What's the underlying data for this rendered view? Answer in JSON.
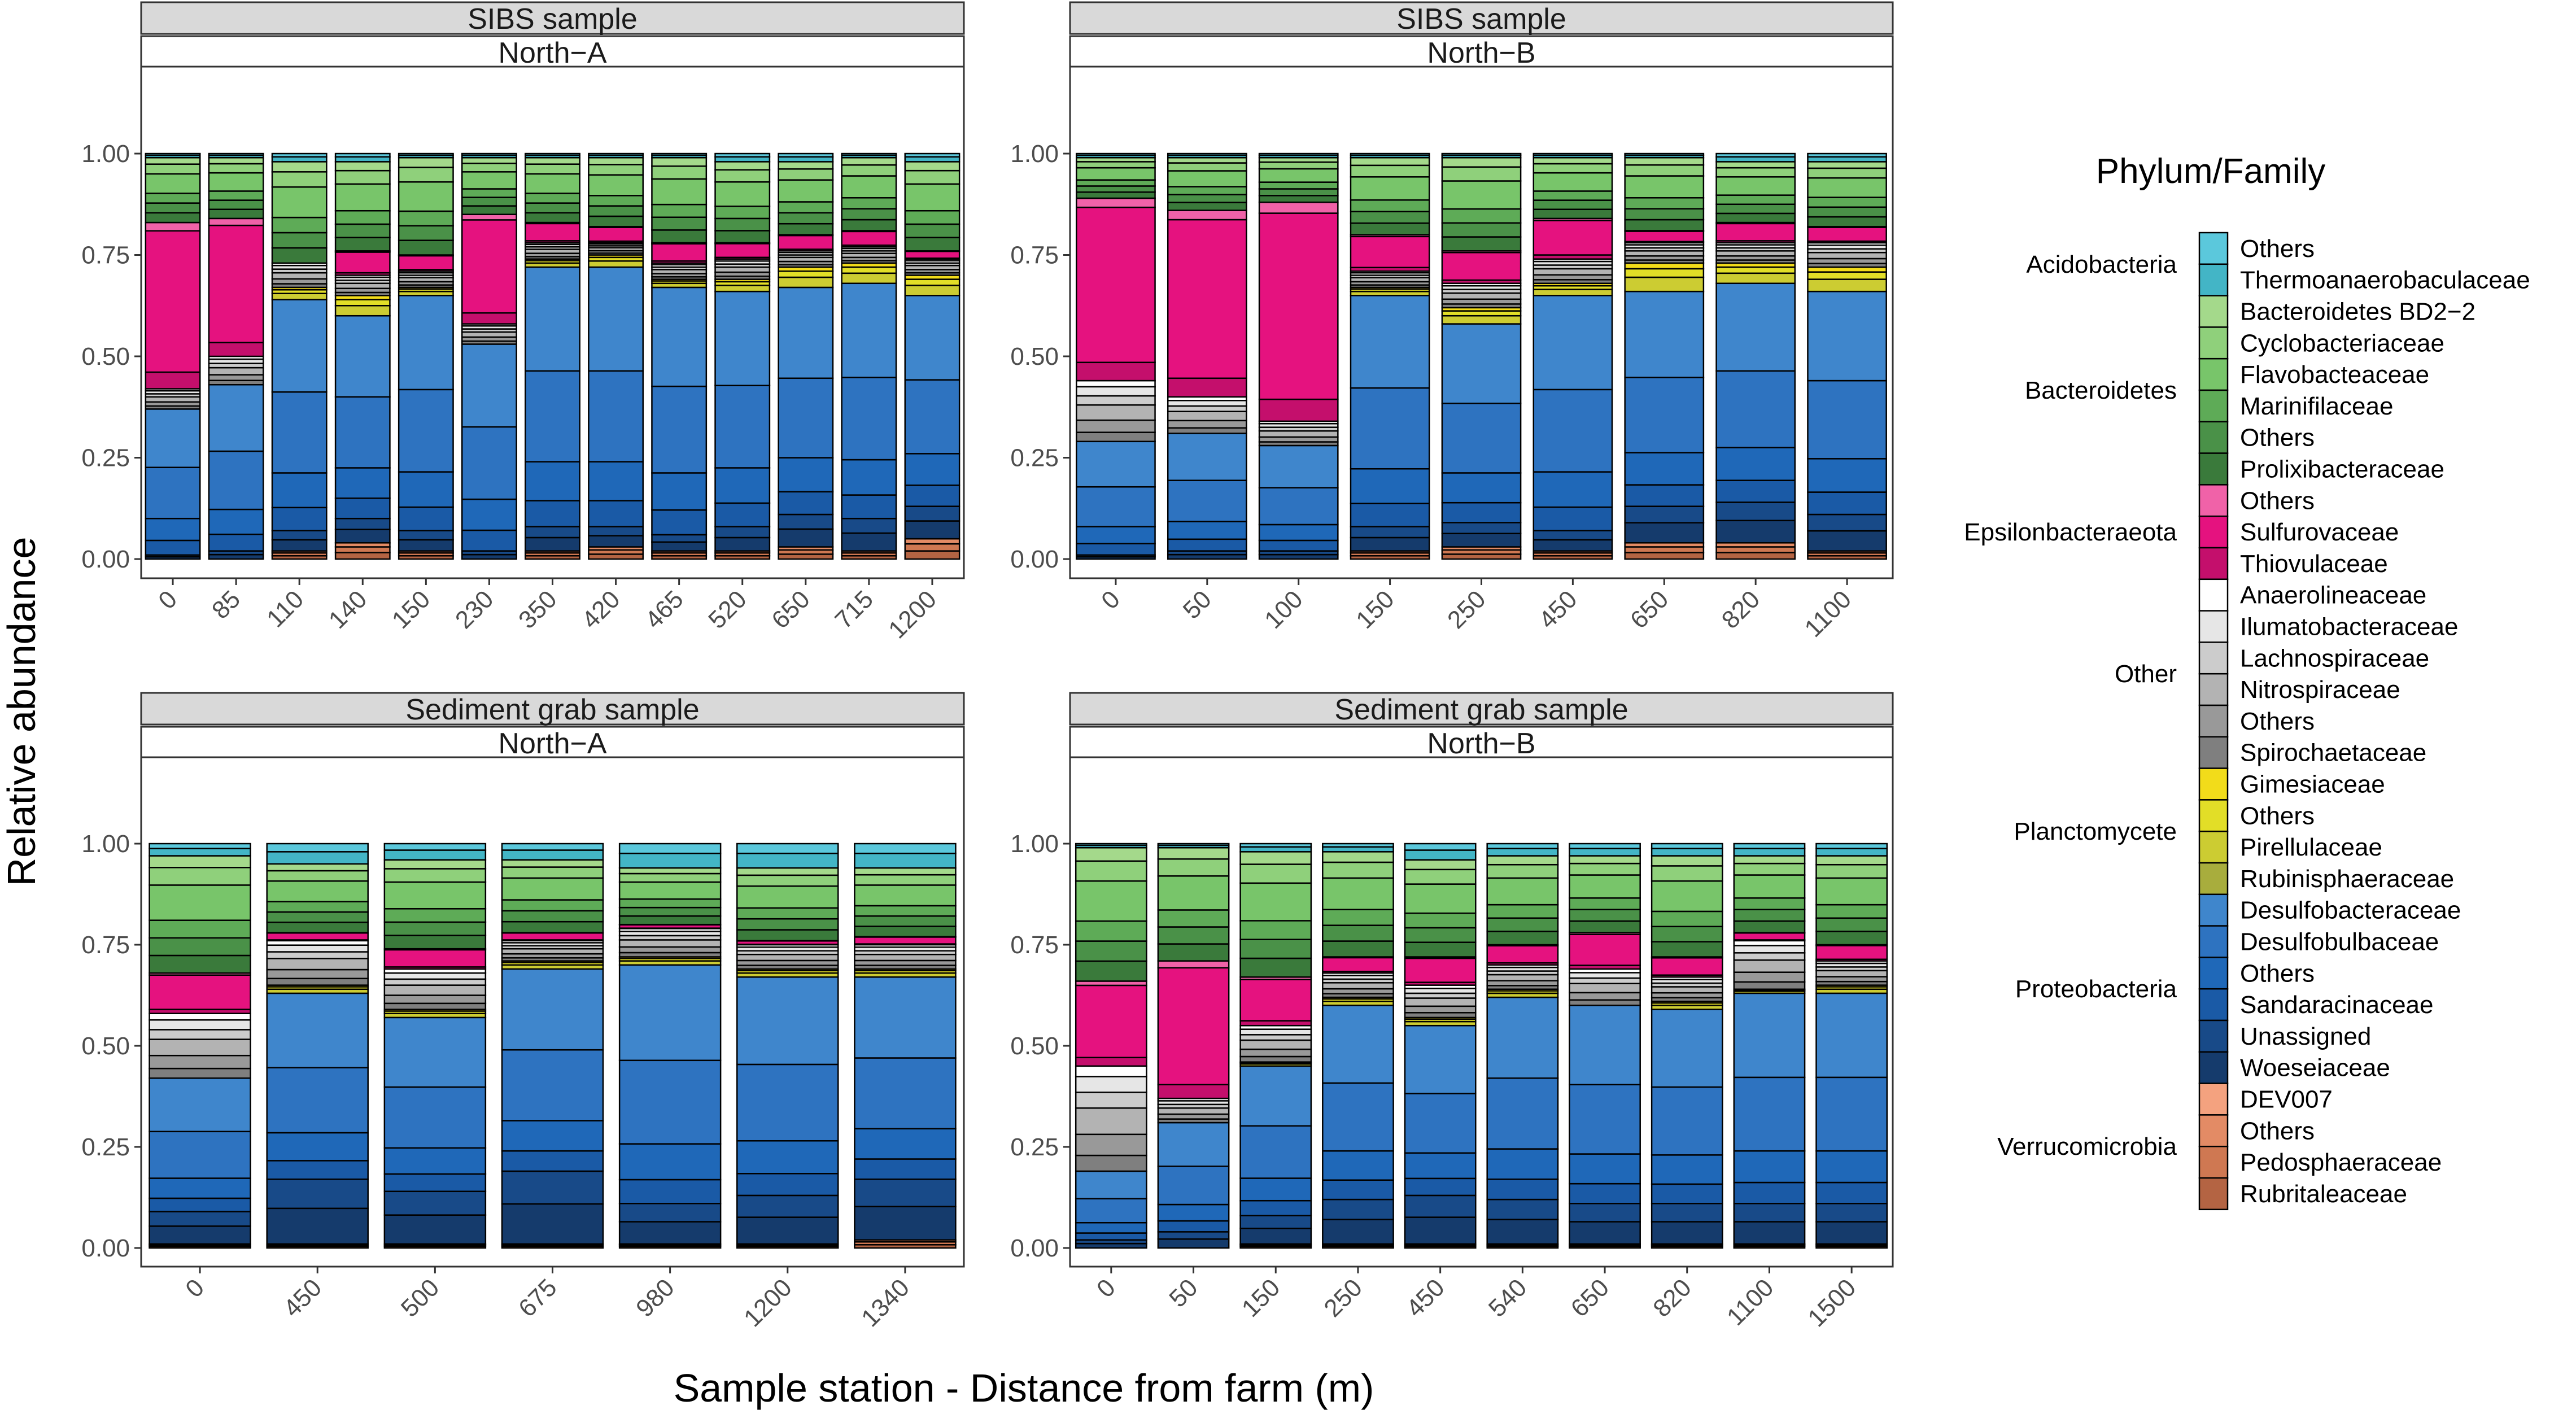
{
  "chart_data": {
    "type": "bar",
    "stacked": true,
    "xlabel": "Sample station - Distance from farm (m)",
    "ylabel": "Relative abundance",
    "yticks": [
      "0.00",
      "0.25",
      "0.50",
      "0.75",
      "1.00"
    ],
    "ylim": [
      0,
      1
    ],
    "legend": {
      "title": "Phylum/Family",
      "position": "right",
      "groups": [
        {
          "phylum": "Acidobacteria",
          "items": [
            {
              "name": "Others",
              "color": "#5bc8dc"
            },
            {
              "name": "Thermoanaerobaculaceae",
              "color": "#43b5c6"
            }
          ]
        },
        {
          "phylum": "Bacteroidetes",
          "items": [
            {
              "name": "Bacteroidetes BD2−2",
              "color": "#a4d98b"
            },
            {
              "name": "Cyclobacteriaceae",
              "color": "#8fd07b"
            },
            {
              "name": "Flavobacteaceae",
              "color": "#78c56a"
            },
            {
              "name": "Marinifilaceae",
              "color": "#5eab57"
            },
            {
              "name": "Others",
              "color": "#4a9148"
            },
            {
              "name": "Prolixibacteraceae",
              "color": "#3a7a3b"
            }
          ]
        },
        {
          "phylum": "Epsilonbacteraeota",
          "items": [
            {
              "name": "Others",
              "color": "#f062a8"
            },
            {
              "name": "Sulfurovaceae",
              "color": "#e5127f"
            },
            {
              "name": "Thiovulaceae",
              "color": "#c40f6c"
            }
          ]
        },
        {
          "phylum": "Other",
          "items": [
            {
              "name": "Anaerolineaceae",
              "color": "#ffffff"
            },
            {
              "name": "Ilumatobacteraceae",
              "color": "#e6e6e6"
            },
            {
              "name": "Lachnospiraceae",
              "color": "#cccccc"
            },
            {
              "name": "Nitrospiraceae",
              "color": "#b3b3b3"
            },
            {
              "name": "Others",
              "color": "#999999"
            },
            {
              "name": "Spirochaetaceae",
              "color": "#7f7f7f"
            }
          ]
        },
        {
          "phylum": "Planctomycete",
          "items": [
            {
              "name": "Gimesiaceae",
              "color": "#f2dc1a"
            },
            {
              "name": "Others",
              "color": "#e2de27"
            },
            {
              "name": "Pirellulaceae",
              "color": "#cccc32"
            },
            {
              "name": "Rubinisphaeraceae",
              "color": "#a8ad3d"
            }
          ]
        },
        {
          "phylum": "Proteobacteria",
          "items": [
            {
              "name": "Desulfobacteraceae",
              "color": "#3f86cc"
            },
            {
              "name": "Desulfobulbaceae",
              "color": "#2e73c0"
            },
            {
              "name": "Others",
              "color": "#1f68b8"
            },
            {
              "name": "Sandaracinaceae",
              "color": "#1a5aa6"
            },
            {
              "name": "Unassigned",
              "color": "#184a88"
            },
            {
              "name": "Woeseiaceae",
              "color": "#153b6c"
            }
          ]
        },
        {
          "phylum": "Verrucomicrobia",
          "items": [
            {
              "name": "DEV007",
              "color": "#f4a27f"
            },
            {
              "name": "Others",
              "color": "#e38b65"
            },
            {
              "name": "Pedosphaeraceae",
              "color": "#cf7852"
            },
            {
              "name": "Rubritaleaceae",
              "color": "#b46443"
            }
          ]
        }
      ]
    },
    "panels": [
      {
        "sample": "SIBS sample",
        "site": "North−A",
        "categories": [
          "0",
          "85",
          "110",
          "140",
          "150",
          "230",
          "350",
          "420",
          "465",
          "520",
          "650",
          "715",
          "1200"
        ],
        "series": [
          {
            "name": "Verrucomicrobia",
            "values": [
              0.0,
              0.0,
              0.02,
              0.04,
              0.02,
              0.0,
              0.02,
              0.03,
              0.02,
              0.02,
              0.03,
              0.02,
              0.05
            ]
          },
          {
            "name": "Woeseiaceae / Unassigned",
            "values": [
              0.01,
              0.02,
              0.05,
              0.06,
              0.05,
              0.02,
              0.06,
              0.05,
              0.04,
              0.06,
              0.08,
              0.08,
              0.08
            ]
          },
          {
            "name": "Desulfobacteraceae",
            "values": [
              0.36,
              0.41,
              0.57,
              0.5,
              0.58,
              0.51,
              0.64,
              0.64,
              0.61,
              0.58,
              0.56,
              0.58,
              0.52
            ]
          },
          {
            "name": "Planctomycete",
            "values": [
              0.0,
              0.0,
              0.03,
              0.05,
              0.02,
              0.0,
              0.02,
              0.03,
              0.02,
              0.03,
              0.05,
              0.05,
              0.05
            ]
          },
          {
            "name": "Other",
            "values": [
              0.05,
              0.07,
              0.06,
              0.05,
              0.04,
              0.05,
              0.04,
              0.03,
              0.04,
              0.05,
              0.04,
              0.04,
              0.04
            ]
          },
          {
            "name": "Epsilonbacteraeota",
            "values": [
              0.41,
              0.34,
              0.0,
              0.06,
              0.04,
              0.27,
              0.05,
              0.04,
              0.05,
              0.04,
              0.04,
              0.04,
              0.02
            ]
          },
          {
            "name": "Bacteroidetes",
            "values": [
              0.16,
              0.15,
              0.25,
              0.22,
              0.24,
              0.14,
              0.16,
              0.17,
              0.21,
              0.2,
              0.18,
              0.18,
              0.22
            ]
          },
          {
            "name": "Acidobacteria",
            "values": [
              0.01,
              0.01,
              0.02,
              0.02,
              0.01,
              0.01,
              0.01,
              0.01,
              0.01,
              0.02,
              0.02,
              0.01,
              0.02
            ]
          }
        ]
      },
      {
        "sample": "SIBS sample",
        "site": "North−B",
        "categories": [
          "0",
          "50",
          "100",
          "150",
          "250",
          "450",
          "650",
          "820",
          "1100"
        ],
        "series": [
          {
            "name": "Verrucomicrobia",
            "values": [
              0.0,
              0.0,
              0.0,
              0.02,
              0.03,
              0.02,
              0.04,
              0.04,
              0.02
            ]
          },
          {
            "name": "Woeseiaceae / Unassigned",
            "values": [
              0.01,
              0.02,
              0.02,
              0.06,
              0.06,
              0.05,
              0.09,
              0.1,
              0.09
            ]
          },
          {
            "name": "Desulfobacteraceae",
            "values": [
              0.28,
              0.29,
              0.26,
              0.57,
              0.49,
              0.58,
              0.53,
              0.54,
              0.55
            ]
          },
          {
            "name": "Planctomycete",
            "values": [
              0.0,
              0.0,
              0.0,
              0.02,
              0.04,
              0.03,
              0.07,
              0.05,
              0.06
            ]
          },
          {
            "name": "Other",
            "values": [
              0.15,
              0.09,
              0.06,
              0.04,
              0.06,
              0.06,
              0.05,
              0.05,
              0.06
            ]
          },
          {
            "name": "Epsilonbacteraeota",
            "values": [
              0.45,
              0.46,
              0.54,
              0.09,
              0.08,
              0.1,
              0.03,
              0.05,
              0.04
            ]
          },
          {
            "name": "Bacteroidetes",
            "values": [
              0.1,
              0.13,
              0.11,
              0.19,
              0.23,
              0.15,
              0.18,
              0.15,
              0.16
            ]
          },
          {
            "name": "Acidobacteria",
            "values": [
              0.01,
              0.01,
              0.01,
              0.01,
              0.01,
              0.01,
              0.01,
              0.02,
              0.02
            ]
          }
        ]
      },
      {
        "sample": "Sediment grab sample",
        "site": "North−A",
        "categories": [
          "0",
          "450",
          "500",
          "675",
          "980",
          "1200",
          "1340"
        ],
        "series": [
          {
            "name": "Verrucomicrobia",
            "values": [
              0.01,
              0.01,
              0.01,
              0.01,
              0.01,
              0.01,
              0.02
            ]
          },
          {
            "name": "Woeseiaceae / Unassigned",
            "values": [
              0.08,
              0.16,
              0.13,
              0.18,
              0.1,
              0.12,
              0.15
            ]
          },
          {
            "name": "Desulfobacteraceae",
            "values": [
              0.33,
              0.46,
              0.43,
              0.5,
              0.59,
              0.54,
              0.5
            ]
          },
          {
            "name": "Planctomycete",
            "values": [
              0.0,
              0.02,
              0.02,
              0.02,
              0.02,
              0.02,
              0.02
            ]
          },
          {
            "name": "Other",
            "values": [
              0.16,
              0.11,
              0.1,
              0.05,
              0.07,
              0.06,
              0.06
            ]
          },
          {
            "name": "Epsilonbacteraeota",
            "values": [
              0.1,
              0.02,
              0.05,
              0.02,
              0.01,
              0.01,
              0.02
            ]
          },
          {
            "name": "Bacteroidetes",
            "values": [
              0.29,
              0.17,
              0.22,
              0.18,
              0.14,
              0.18,
              0.17
            ]
          },
          {
            "name": "Acidobacteria",
            "values": [
              0.03,
              0.05,
              0.04,
              0.04,
              0.06,
              0.06,
              0.06
            ]
          }
        ]
      },
      {
        "sample": "Sediment grab sample",
        "site": "North−B",
        "categories": [
          "0",
          "50",
          "150",
          "250",
          "450",
          "540",
          "650",
          "820",
          "1100",
          "1500"
        ],
        "series": [
          {
            "name": "Verrucomicrobia",
            "values": [
              0.0,
              0.0,
              0.01,
              0.01,
              0.01,
              0.01,
              0.01,
              0.01,
              0.01,
              0.01
            ]
          },
          {
            "name": "Woeseiaceae / Unassigned",
            "values": [
              0.02,
              0.04,
              0.07,
              0.11,
              0.12,
              0.11,
              0.1,
              0.1,
              0.1,
              0.1
            ]
          },
          {
            "name": "Desulfobacteraceae",
            "values": [
              0.17,
              0.27,
              0.37,
              0.48,
              0.42,
              0.5,
              0.49,
              0.48,
              0.52,
              0.52
            ]
          },
          {
            "name": "Planctomycete",
            "values": [
              0.0,
              0.0,
              0.01,
              0.02,
              0.02,
              0.02,
              0.0,
              0.02,
              0.01,
              0.02
            ]
          },
          {
            "name": "Other",
            "values": [
              0.26,
              0.06,
              0.09,
              0.06,
              0.08,
              0.06,
              0.09,
              0.06,
              0.12,
              0.06
            ]
          },
          {
            "name": "Epsilonbacteraeota",
            "values": [
              0.21,
              0.34,
              0.12,
              0.04,
              0.07,
              0.05,
              0.09,
              0.05,
              0.02,
              0.04
            ]
          },
          {
            "name": "Bacteroidetes",
            "values": [
              0.33,
              0.28,
              0.31,
              0.26,
              0.24,
              0.22,
              0.19,
              0.25,
              0.19,
              0.22
            ]
          },
          {
            "name": "Acidobacteria",
            "values": [
              0.01,
              0.01,
              0.02,
              0.02,
              0.04,
              0.03,
              0.03,
              0.03,
              0.03,
              0.03
            ]
          }
        ]
      }
    ]
  }
}
